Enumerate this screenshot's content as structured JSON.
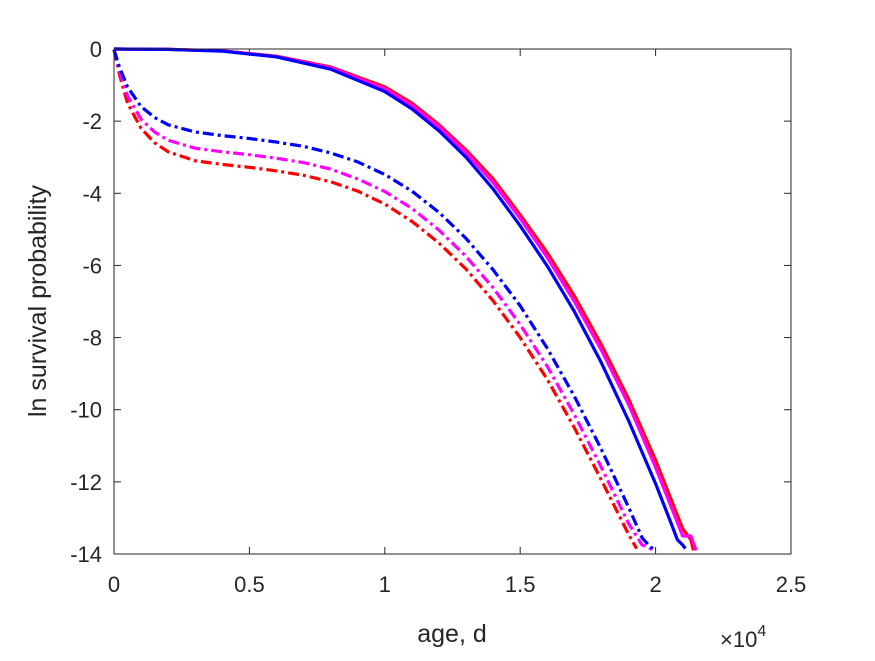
{
  "chart_data": {
    "type": "line",
    "title": "",
    "xlabel": "age, d",
    "ylabel": "ln survival probability",
    "x_multiplier_label": "×10",
    "x_multiplier_exponent": "4",
    "xlim": [
      0,
      2.5
    ],
    "ylim": [
      -14,
      0
    ],
    "x_units_note": "x values in units of 10^4 d",
    "xticks": [
      "0",
      "0.5",
      "1",
      "1.5",
      "2",
      "2.5"
    ],
    "yticks": [
      "0",
      "-2",
      "-4",
      "-6",
      "-8",
      "-10",
      "-12",
      "-14"
    ],
    "grid": false,
    "legend": "none",
    "series": [
      {
        "color": "#ff0000",
        "style": "solid",
        "points": [
          [
            0,
            0
          ],
          [
            0.2,
            -0.01
          ],
          [
            0.4,
            -0.05
          ],
          [
            0.6,
            -0.2
          ],
          [
            0.8,
            -0.5
          ],
          [
            1.0,
            -1.05
          ],
          [
            1.1,
            -1.5
          ],
          [
            1.2,
            -2.1
          ],
          [
            1.3,
            -2.8
          ],
          [
            1.4,
            -3.6
          ],
          [
            1.5,
            -4.6
          ],
          [
            1.6,
            -5.65
          ],
          [
            1.7,
            -6.85
          ],
          [
            1.8,
            -8.2
          ],
          [
            1.9,
            -9.7
          ],
          [
            2.0,
            -11.4
          ],
          [
            2.1,
            -13.3
          ],
          [
            2.12,
            -13.5
          ],
          [
            2.13,
            -13.6
          ],
          [
            2.14,
            -13.9
          ]
        ]
      },
      {
        "color": "#ff00ff",
        "style": "solid",
        "points": [
          [
            0,
            0
          ],
          [
            0.2,
            -0.01
          ],
          [
            0.4,
            -0.05
          ],
          [
            0.6,
            -0.21
          ],
          [
            0.8,
            -0.52
          ],
          [
            1.0,
            -1.1
          ],
          [
            1.1,
            -1.56
          ],
          [
            1.2,
            -2.15
          ],
          [
            1.3,
            -2.87
          ],
          [
            1.4,
            -3.7
          ],
          [
            1.5,
            -4.7
          ],
          [
            1.6,
            -5.78
          ],
          [
            1.7,
            -7.0
          ],
          [
            1.8,
            -8.35
          ],
          [
            1.9,
            -9.85
          ],
          [
            2.0,
            -11.6
          ],
          [
            2.1,
            -13.5
          ],
          [
            2.13,
            -13.5
          ],
          [
            2.15,
            -13.9
          ]
        ]
      },
      {
        "color": "#0000ff",
        "style": "solid",
        "points": [
          [
            0,
            0
          ],
          [
            0.2,
            -0.01
          ],
          [
            0.4,
            -0.06
          ],
          [
            0.6,
            -0.22
          ],
          [
            0.8,
            -0.56
          ],
          [
            1.0,
            -1.18
          ],
          [
            1.1,
            -1.66
          ],
          [
            1.2,
            -2.27
          ],
          [
            1.3,
            -3.0
          ],
          [
            1.4,
            -3.88
          ],
          [
            1.5,
            -4.9
          ],
          [
            1.6,
            -6.02
          ],
          [
            1.7,
            -7.28
          ],
          [
            1.8,
            -8.7
          ],
          [
            1.9,
            -10.3
          ],
          [
            2.0,
            -12.05
          ],
          [
            2.06,
            -13.2
          ],
          [
            2.08,
            -13.6
          ],
          [
            2.1,
            -13.75
          ],
          [
            2.11,
            -13.85
          ]
        ]
      },
      {
        "color": "#ff0000",
        "style": "dashdot",
        "points": [
          [
            0,
            -0.02
          ],
          [
            0.02,
            -0.7
          ],
          [
            0.05,
            -1.5
          ],
          [
            0.1,
            -2.2
          ],
          [
            0.15,
            -2.6
          ],
          [
            0.2,
            -2.85
          ],
          [
            0.3,
            -3.1
          ],
          [
            0.4,
            -3.2
          ],
          [
            0.5,
            -3.28
          ],
          [
            0.6,
            -3.38
          ],
          [
            0.7,
            -3.5
          ],
          [
            0.8,
            -3.68
          ],
          [
            0.9,
            -3.94
          ],
          [
            1.0,
            -4.3
          ],
          [
            1.1,
            -4.78
          ],
          [
            1.2,
            -5.38
          ],
          [
            1.3,
            -6.1
          ],
          [
            1.4,
            -6.98
          ],
          [
            1.5,
            -8.0
          ],
          [
            1.6,
            -9.16
          ],
          [
            1.7,
            -10.5
          ],
          [
            1.8,
            -11.95
          ],
          [
            1.9,
            -13.45
          ],
          [
            1.93,
            -13.85
          ]
        ]
      },
      {
        "color": "#ff00ff",
        "style": "dashdot",
        "points": [
          [
            0,
            -0.02
          ],
          [
            0.02,
            -0.6
          ],
          [
            0.05,
            -1.3
          ],
          [
            0.1,
            -1.95
          ],
          [
            0.15,
            -2.3
          ],
          [
            0.2,
            -2.53
          ],
          [
            0.3,
            -2.75
          ],
          [
            0.4,
            -2.85
          ],
          [
            0.5,
            -2.93
          ],
          [
            0.6,
            -3.03
          ],
          [
            0.7,
            -3.15
          ],
          [
            0.8,
            -3.33
          ],
          [
            0.9,
            -3.6
          ],
          [
            1.0,
            -3.95
          ],
          [
            1.1,
            -4.42
          ],
          [
            1.2,
            -5.02
          ],
          [
            1.3,
            -5.75
          ],
          [
            1.4,
            -6.62
          ],
          [
            1.5,
            -7.64
          ],
          [
            1.6,
            -8.8
          ],
          [
            1.7,
            -10.14
          ],
          [
            1.8,
            -11.6
          ],
          [
            1.9,
            -13.15
          ],
          [
            1.95,
            -13.75
          ],
          [
            1.97,
            -13.8
          ],
          [
            1.99,
            -13.9
          ]
        ]
      },
      {
        "color": "#0000ff",
        "style": "dashdot",
        "points": [
          [
            0,
            -0.02
          ],
          [
            0.02,
            -0.5
          ],
          [
            0.05,
            -1.05
          ],
          [
            0.1,
            -1.6
          ],
          [
            0.15,
            -1.9
          ],
          [
            0.2,
            -2.1
          ],
          [
            0.3,
            -2.3
          ],
          [
            0.4,
            -2.4
          ],
          [
            0.5,
            -2.48
          ],
          [
            0.6,
            -2.58
          ],
          [
            0.7,
            -2.7
          ],
          [
            0.8,
            -2.88
          ],
          [
            0.9,
            -3.13
          ],
          [
            1.0,
            -3.48
          ],
          [
            1.1,
            -3.94
          ],
          [
            1.2,
            -4.53
          ],
          [
            1.3,
            -5.25
          ],
          [
            1.4,
            -6.12
          ],
          [
            1.5,
            -7.12
          ],
          [
            1.6,
            -8.3
          ],
          [
            1.7,
            -9.63
          ],
          [
            1.8,
            -11.1
          ],
          [
            1.9,
            -12.7
          ],
          [
            1.95,
            -13.55
          ],
          [
            1.98,
            -13.8
          ],
          [
            2.0,
            -13.9
          ]
        ]
      }
    ]
  }
}
